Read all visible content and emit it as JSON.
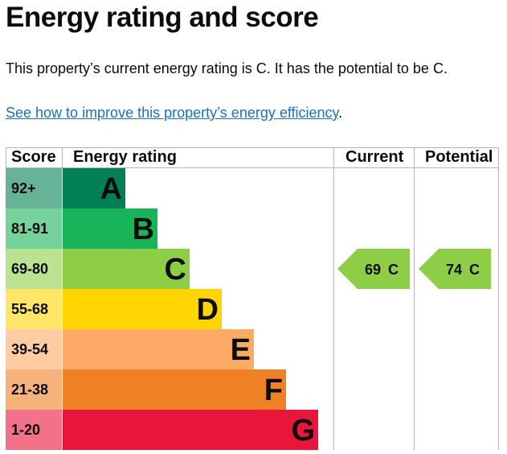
{
  "page": {
    "title": "Energy rating and score",
    "summary": "This property’s current energy rating is C. It has the potential to be C.",
    "link_text": "See how to improve this property’s energy efficiency",
    "link_suffix": "."
  },
  "table": {
    "headers": {
      "score": "Score",
      "rating": "Energy rating",
      "current": "Current",
      "potential": "Potential"
    },
    "bands": [
      {
        "score": "92+",
        "letter": "A",
        "color": "#008054",
        "score_color": "#66b398"
      },
      {
        "score": "81-91",
        "letter": "B",
        "color": "#19b459",
        "score_color": "#75d29b"
      },
      {
        "score": "69-80",
        "letter": "C",
        "color": "#8dce46",
        "score_color": "#bbe290"
      },
      {
        "score": "55-68",
        "letter": "D",
        "color": "#ffd500",
        "score_color": "#ffe666"
      },
      {
        "score": "39-54",
        "letter": "E",
        "color": "#fcaa65",
        "score_color": "#fdcca3"
      },
      {
        "score": "21-38",
        "letter": "F",
        "color": "#ef8023",
        "score_color": "#f5b37b"
      },
      {
        "score": "1-20",
        "letter": "G",
        "color": "#e9153b",
        "score_color": "#f27389"
      }
    ],
    "current": {
      "value": "69",
      "letter": "C",
      "band": "C",
      "color": "#8dce46"
    },
    "potential": {
      "value": "74",
      "letter": "C",
      "band": "C",
      "color": "#8dce46"
    }
  }
}
